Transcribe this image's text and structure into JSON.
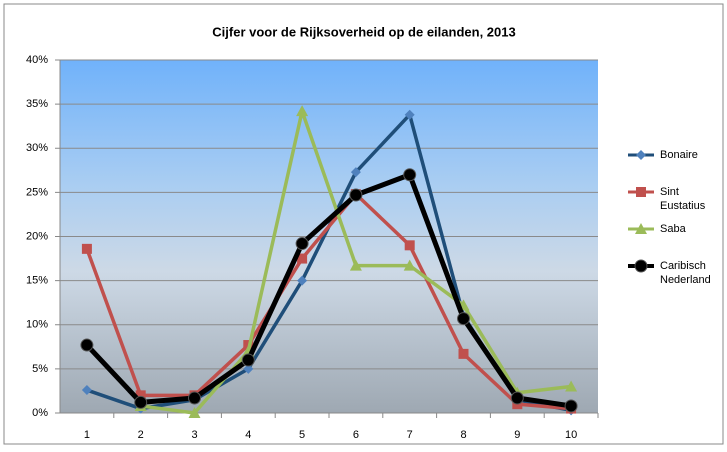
{
  "chart_data": {
    "type": "line",
    "title": "Cijfer voor de Rijksoverheid op de eilanden, 2013",
    "categories": [
      "1",
      "2",
      "3",
      "4",
      "5",
      "6",
      "7",
      "8",
      "9",
      "10"
    ],
    "series": [
      {
        "name": "Bonaire",
        "color": "#1f4e79",
        "marker": "diamond",
        "marker_color": "#4f81bd",
        "values": [
          2.6,
          0.5,
          1.5,
          5,
          15,
          27.3,
          33.8,
          11,
          1.5,
          0.3
        ]
      },
      {
        "name": "Sint Eustatius",
        "color": "#c0504d",
        "marker": "square",
        "marker_color": "#c0504d",
        "values": [
          18.6,
          2,
          2,
          7.7,
          17.5,
          24.8,
          19,
          6.7,
          1,
          0.5
        ]
      },
      {
        "name": "Saba",
        "color": "#9bbb59",
        "marker": "triangle",
        "marker_color": "#9bbb59",
        "values": [
          null,
          0.8,
          0,
          7,
          34.2,
          16.7,
          16.7,
          12.2,
          2.3,
          3
        ]
      },
      {
        "name": "Caribisch Nederland",
        "color": "#000000",
        "marker": "circle",
        "marker_color": "#000000",
        "values": [
          7.7,
          1.2,
          1.7,
          6,
          19.2,
          24.7,
          27,
          10.7,
          1.7,
          0.8
        ]
      }
    ],
    "ylim": [
      0,
      40
    ],
    "yticks": [
      {
        "value": 0,
        "label": "0%"
      },
      {
        "value": 5,
        "label": "5%"
      },
      {
        "value": 10,
        "label": "10%"
      },
      {
        "value": 15,
        "label": "15%"
      },
      {
        "value": 20,
        "label": "20%"
      },
      {
        "value": 25,
        "label": "25%"
      },
      {
        "value": 30,
        "label": "30%"
      },
      {
        "value": 35,
        "label": "35%"
      },
      {
        "value": 40,
        "label": "40%"
      }
    ],
    "grid": true,
    "legend": "right"
  }
}
